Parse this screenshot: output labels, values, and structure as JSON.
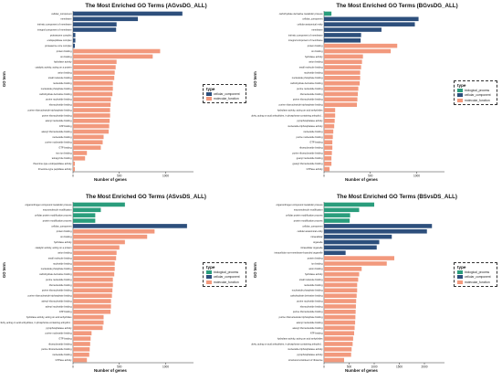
{
  "ylabel": "GO term",
  "xlabel": "Number of genes",
  "legend_title": "type",
  "types": {
    "biological_process": {
      "label": "biological_process",
      "color": "#2a9d7c"
    },
    "cellular_component": {
      "label": "cellular_component",
      "color": "#2d4f7c"
    },
    "molecular_function": {
      "label": "molecular_function",
      "color": "#f2997d"
    }
  },
  "chart_data": [
    {
      "type": "bar",
      "title": "The Most Enriched GO Terms (AGvsDG_ALL)",
      "xlim": [
        0,
        1300
      ],
      "xticks": [
        0,
        500,
        1000
      ],
      "legend_types": [
        "cellular_component",
        "molecular_function"
      ],
      "categories": [
        "cellular_component",
        "membrane",
        "intrinsic component of membrane",
        "integral component of membrane",
        "proteasome complex",
        "endopeptidase complex",
        "proteasome core complex",
        "protein binding",
        "ion binding",
        "hydrolase activity",
        "catalytic activity, acting on a protein",
        "anion binding",
        "small molecule binding",
        "nucleotide binding",
        "nucleoside phosphate binding",
        "carbohydrate derivative binding",
        "purine nucleotide binding",
        "ribonucleotide binding",
        "purine ribonucleoside triphosphate binding",
        "purine ribonucleotide binding",
        "adenyl nucleotide binding",
        "ATP binding",
        "adenyl ribonucleotide binding",
        "nucleoside binding",
        "purine nucleoside binding",
        "GTP binding",
        "iron ion binding",
        "tetrapyrrole binding",
        "threonine-type endopeptidase activity",
        "threonine-type peptidase activity"
      ],
      "types": [
        "cellular_component",
        "cellular_component",
        "cellular_component",
        "cellular_component",
        "cellular_component",
        "cellular_component",
        "cellular_component",
        "molecular_function",
        "molecular_function",
        "molecular_function",
        "molecular_function",
        "molecular_function",
        "molecular_function",
        "molecular_function",
        "molecular_function",
        "molecular_function",
        "molecular_function",
        "molecular_function",
        "molecular_function",
        "molecular_function",
        "molecular_function",
        "molecular_function",
        "molecular_function",
        "molecular_function",
        "molecular_function",
        "molecular_function",
        "molecular_function",
        "molecular_function",
        "molecular_function",
        "molecular_function"
      ],
      "values": [
        1180,
        700,
        470,
        465,
        25,
        25,
        20,
        940,
        860,
        470,
        460,
        450,
        445,
        430,
        430,
        425,
        410,
        405,
        400,
        400,
        395,
        390,
        385,
        330,
        320,
        300,
        150,
        130,
        20,
        20
      ]
    },
    {
      "type": "bar",
      "title": "The Most Enriched GO Terms (BGvsDG_ALL)",
      "xlim": [
        0,
        1300
      ],
      "xticks": [
        0,
        500,
        1000
      ],
      "legend_types": [
        "biological_process",
        "cellular_component",
        "molecular_function"
      ],
      "categories": [
        "carbohydrate derivative metabolic process",
        "cellular_component",
        "cellular anatomical entity",
        "membrane",
        "intrinsic component of membrane",
        "integral component of membrane",
        "protein binding",
        "ion binding",
        "hydrolase activity",
        "anion binding",
        "small molecule binding",
        "nucleotide binding",
        "nucleoside phosphate binding",
        "carbohydrate derivative binding",
        "purine nucleotide binding",
        "ribonucleotide binding",
        "purine ribonucleotide binding",
        "purine ribonucleoside triphosphate binding",
        "hydrolase activity, acting on acid anhydrides",
        "hydrolase activity, acting on acid anhydrides, in phosphorus-containing anhydrid...",
        "pyrophosphatase activity",
        "nucleoside-triphosphatase activity",
        "nucleoside binding",
        "purine nucleoside binding",
        "GTP binding",
        "ribonucleoside binding",
        "purine ribonucleoside binding",
        "guanyl nucleotide binding",
        "guanyl ribonucleotide binding",
        "GTPase activity"
      ],
      "types": [
        "biological_process",
        "cellular_component",
        "cellular_component",
        "cellular_component",
        "cellular_component",
        "cellular_component",
        "molecular_function",
        "molecular_function",
        "molecular_function",
        "molecular_function",
        "molecular_function",
        "molecular_function",
        "molecular_function",
        "molecular_function",
        "molecular_function",
        "molecular_function",
        "molecular_function",
        "molecular_function",
        "molecular_function",
        "molecular_function",
        "molecular_function",
        "molecular_function",
        "molecular_function",
        "molecular_function",
        "molecular_function",
        "molecular_function",
        "molecular_function",
        "molecular_function",
        "molecular_function",
        "molecular_function"
      ],
      "values": [
        80,
        1020,
        980,
        620,
        400,
        395,
        790,
        720,
        420,
        410,
        400,
        390,
        390,
        385,
        370,
        365,
        360,
        355,
        120,
        120,
        115,
        110,
        100,
        95,
        90,
        90,
        85,
        80,
        80,
        60
      ]
    },
    {
      "type": "bar",
      "title": "The Most Enriched GO Terms (ASvsDS_ALL)",
      "xlim": [
        0,
        1300
      ],
      "xticks": [
        0,
        500,
        1000
      ],
      "legend_types": [
        "biological_process",
        "cellular_component",
        "molecular_function"
      ],
      "categories": [
        "organonitrogen compound metabolic process",
        "macromolecule modification",
        "cellular protein modification process",
        "protein modification process",
        "cellular_component",
        "protein binding",
        "ion binding",
        "hydrolase activity",
        "catalytic activity, acting on a protein",
        "anion binding",
        "small molecule binding",
        "nucleotide binding",
        "nucleoside phosphate binding",
        "carbohydrate derivative binding",
        "purine nucleotide binding",
        "ribonucleotide binding",
        "purine ribonucleotide binding",
        "purine ribonucleoside triphosphate binding",
        "adenyl ribonucleotide binding",
        "adenyl nucleotide binding",
        "ATP binding",
        "hydrolase activity, acting on acid anhydrides",
        "hydrolase activity, acting on acid anhydrides, in phosphorus-containing anhydrid...",
        "pyrophosphatase activity",
        "purine nucleoside binding",
        "GTP binding",
        "ribonucleoside binding",
        "purine ribonucleoside binding",
        "nucleoside binding",
        "GTPase activity"
      ],
      "types": [
        "biological_process",
        "biological_process",
        "biological_process",
        "biological_process",
        "cellular_component",
        "molecular_function",
        "molecular_function",
        "molecular_function",
        "molecular_function",
        "molecular_function",
        "molecular_function",
        "molecular_function",
        "molecular_function",
        "molecular_function",
        "molecular_function",
        "molecular_function",
        "molecular_function",
        "molecular_function",
        "molecular_function",
        "molecular_function",
        "molecular_function",
        "molecular_function",
        "molecular_function",
        "molecular_function",
        "molecular_function",
        "molecular_function",
        "molecular_function",
        "molecular_function",
        "molecular_function",
        "molecular_function"
      ],
      "values": [
        560,
        300,
        240,
        240,
        1230,
        880,
        800,
        560,
        500,
        470,
        465,
        450,
        450,
        445,
        430,
        430,
        425,
        420,
        410,
        410,
        405,
        330,
        330,
        320,
        200,
        190,
        185,
        180,
        175,
        150
      ]
    },
    {
      "type": "bar",
      "title": "The Most Enriched GO Terms (BSvsDS_ALL)",
      "xlim": [
        0,
        2400
      ],
      "xticks": [
        0,
        500,
        1000,
        1500,
        2000
      ],
      "legend_types": [
        "biological_process",
        "cellular_component",
        "molecular_function"
      ],
      "categories": [
        "organonitrogen compound metabolic process",
        "macromolecule modification",
        "cellular protein modification process",
        "protein modification process",
        "cellular_component",
        "cellular anatomical entity",
        "intracellular",
        "organelle",
        "intracellular organelle",
        "intracellular non-membrane-bounded organelle",
        "protein binding",
        "ion binding",
        "anion binding",
        "hydrolase activity",
        "small molecule binding",
        "nucleotide binding",
        "nucleoside phosphate binding",
        "carbohydrate derivative binding",
        "purine nucleotide binding",
        "ribonucleotide binding",
        "purine ribonucleotide binding",
        "purine ribonucleoside triphosphate binding",
        "adenyl nucleotide binding",
        "adenyl ribonucleotide binding",
        "ATP binding",
        "hydrolase activity, acting on acid anhydrides",
        "hydrolase activity, acting on acid anhydrides, in phosphorus-containing anhydrid...",
        "nucleoside-triphosphatase activity",
        "pyrophosphatase activity",
        "structural constituent of ribosome"
      ],
      "types": [
        "biological_process",
        "biological_process",
        "biological_process",
        "biological_process",
        "cellular_component",
        "cellular_component",
        "cellular_component",
        "cellular_component",
        "cellular_component",
        "cellular_component",
        "molecular_function",
        "molecular_function",
        "molecular_function",
        "molecular_function",
        "molecular_function",
        "molecular_function",
        "molecular_function",
        "molecular_function",
        "molecular_function",
        "molecular_function",
        "molecular_function",
        "molecular_function",
        "molecular_function",
        "molecular_function",
        "molecular_function",
        "molecular_function",
        "molecular_function",
        "molecular_function",
        "molecular_function",
        "molecular_function"
      ],
      "values": [
        1000,
        700,
        520,
        510,
        2150,
        2050,
        1350,
        1100,
        1050,
        430,
        1400,
        1250,
        750,
        700,
        680,
        660,
        660,
        650,
        640,
        635,
        630,
        625,
        620,
        610,
        600,
        580,
        570,
        550,
        540,
        400
      ]
    }
  ]
}
